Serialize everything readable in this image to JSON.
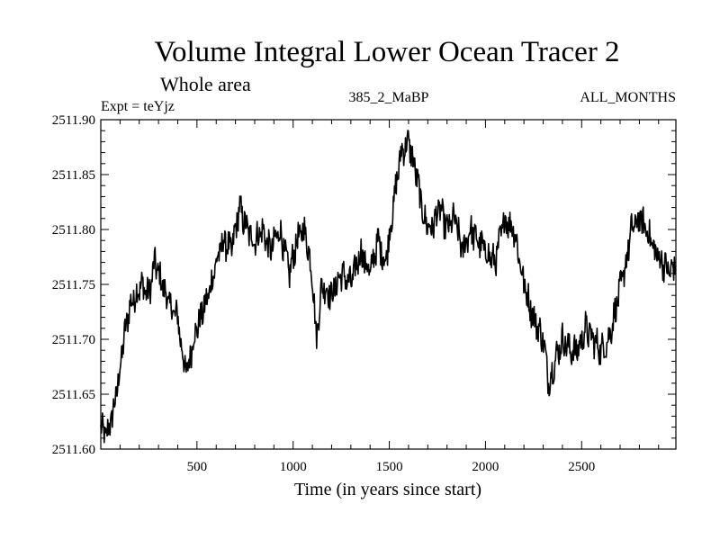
{
  "chart_data": {
    "type": "line",
    "title": "Volume Integral Lower Ocean Tracer 2",
    "subtitle": "Whole area",
    "expt_label": "Expt = teYjz",
    "run_label": "385_2_MaBP",
    "months_label": "ALL_MONTHS",
    "xlabel": "Time (in years since start)",
    "ylabel": "",
    "xlim": [
      0,
      2990
    ],
    "ylim": [
      2511.6,
      2511.9
    ],
    "xticks": [
      500,
      1000,
      1500,
      2000,
      2500
    ],
    "yticks": [
      2511.6,
      2511.65,
      2511.7,
      2511.75,
      2511.8,
      2511.85,
      2511.9
    ],
    "ytick_labels": [
      "2511.60",
      "2511.65",
      "2511.70",
      "2511.75",
      "2511.80",
      "2511.85",
      "2511.90"
    ],
    "grid": false,
    "line_color": "#000000",
    "series": [
      {
        "name": "Volume Integral Lower Ocean Tracer 2",
        "x": [
          0,
          30,
          60,
          90,
          120,
          150,
          180,
          210,
          250,
          280,
          320,
          360,
          400,
          430,
          450,
          480,
          520,
          560,
          600,
          640,
          680,
          720,
          760,
          800,
          840,
          880,
          930,
          980,
          1020,
          1060,
          1100,
          1120,
          1150,
          1200,
          1250,
          1300,
          1350,
          1400,
          1440,
          1480,
          1520,
          1560,
          1600,
          1640,
          1680,
          1720,
          1760,
          1800,
          1840,
          1880,
          1920,
          1960,
          2000,
          2050,
          2100,
          2150,
          2200,
          2250,
          2300,
          2330,
          2360,
          2400,
          2440,
          2480,
          2520,
          2560,
          2600,
          2640,
          2680,
          2720,
          2760,
          2800,
          2840,
          2880,
          2920,
          2960,
          2990
        ],
        "values": [
          2511.618,
          2511.612,
          2511.63,
          2511.66,
          2511.7,
          2511.73,
          2511.74,
          2511.75,
          2511.74,
          2511.77,
          2511.75,
          2511.73,
          2511.72,
          2511.68,
          2511.67,
          2511.7,
          2511.72,
          2511.74,
          2511.77,
          2511.79,
          2511.78,
          2511.82,
          2511.8,
          2511.79,
          2511.8,
          2511.78,
          2511.8,
          2511.76,
          2511.79,
          2511.8,
          2511.76,
          2511.7,
          2511.75,
          2511.74,
          2511.76,
          2511.75,
          2511.78,
          2511.76,
          2511.79,
          2511.77,
          2511.82,
          2511.87,
          2511.88,
          2511.85,
          2511.81,
          2511.8,
          2511.82,
          2511.8,
          2511.81,
          2511.78,
          2511.8,
          2511.79,
          2511.78,
          2511.77,
          2511.81,
          2511.8,
          2511.75,
          2511.72,
          2511.7,
          2511.66,
          2511.68,
          2511.7,
          2511.69,
          2511.69,
          2511.71,
          2511.7,
          2511.69,
          2511.7,
          2511.73,
          2511.76,
          2511.8,
          2511.81,
          2511.8,
          2511.78,
          2511.77,
          2511.76,
          2511.77
        ]
      }
    ]
  }
}
